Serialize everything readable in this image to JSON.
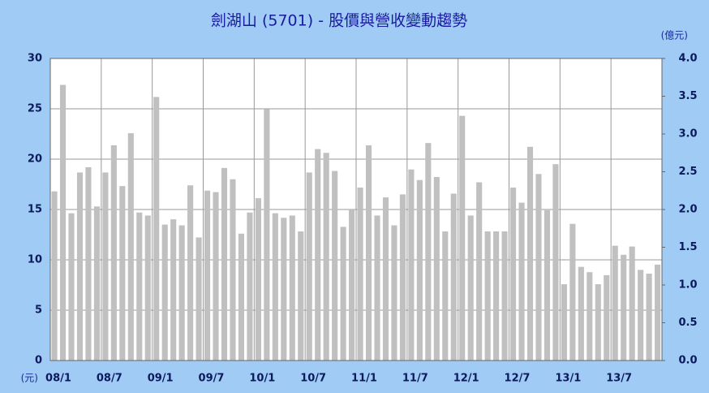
{
  "chart_data": {
    "type": "bar",
    "title": "劍湖山 (5701) - 股價與營收變動趨勢",
    "y_unit": "(元)",
    "y2_unit": "(億元)",
    "categories": [
      "08/1",
      null,
      null,
      null,
      null,
      null,
      "08/7",
      null,
      null,
      null,
      null,
      null,
      "09/1",
      null,
      null,
      null,
      null,
      null,
      "09/7",
      null,
      null,
      null,
      null,
      null,
      "10/1",
      null,
      null,
      null,
      null,
      null,
      "10/7",
      null,
      null,
      null,
      null,
      null,
      "11/1",
      null,
      null,
      null,
      null,
      null,
      "11/7",
      null,
      null,
      null,
      null,
      null,
      "12/1",
      null,
      null,
      null,
      null,
      null,
      "12/7",
      null,
      null,
      null,
      null,
      null,
      "13/1",
      null,
      null,
      null,
      null,
      null,
      "13/7",
      null,
      null,
      null,
      null,
      null
    ],
    "series": [
      {
        "color": "#c0c0c0",
        "axis": "y2",
        "values": [
          2.24,
          3.65,
          1.95,
          2.49,
          2.56,
          2.04,
          2.49,
          2.85,
          2.31,
          3.01,
          1.96,
          1.92,
          3.49,
          1.8,
          1.87,
          1.79,
          2.32,
          1.63,
          2.25,
          2.23,
          2.55,
          2.4,
          1.68,
          1.96,
          2.15,
          3.33,
          1.95,
          1.89,
          1.92,
          1.71,
          2.49,
          2.8,
          2.75,
          2.51,
          1.77,
          2.0,
          2.29,
          2.85,
          1.92,
          2.16,
          1.79,
          2.2,
          2.53,
          2.39,
          2.88,
          2.43,
          1.71,
          2.21,
          3.24,
          1.92,
          2.36,
          1.71,
          1.71,
          1.71,
          2.29,
          2.09,
          2.83,
          2.47,
          1.99,
          2.6,
          1.01,
          1.81,
          1.24,
          1.17,
          1.01,
          1.13,
          1.52,
          1.4,
          1.51,
          1.2,
          1.15,
          1.27
        ]
      }
    ],
    "ylim": [
      0,
      30
    ],
    "yticks": [
      0,
      5,
      10,
      15,
      20,
      25,
      30
    ],
    "y2lim": [
      0,
      4
    ],
    "y2ticks": [
      {
        "value": 0,
        "label": "0.0"
      },
      0.5,
      {
        "value": 1,
        "label": "1.0"
      },
      1.5,
      {
        "value": 2,
        "label": "2.0"
      },
      2.5,
      {
        "value": 3,
        "label": "3.0"
      },
      3.5,
      {
        "value": 4,
        "label": "4.0"
      }
    ],
    "grid": true
  }
}
